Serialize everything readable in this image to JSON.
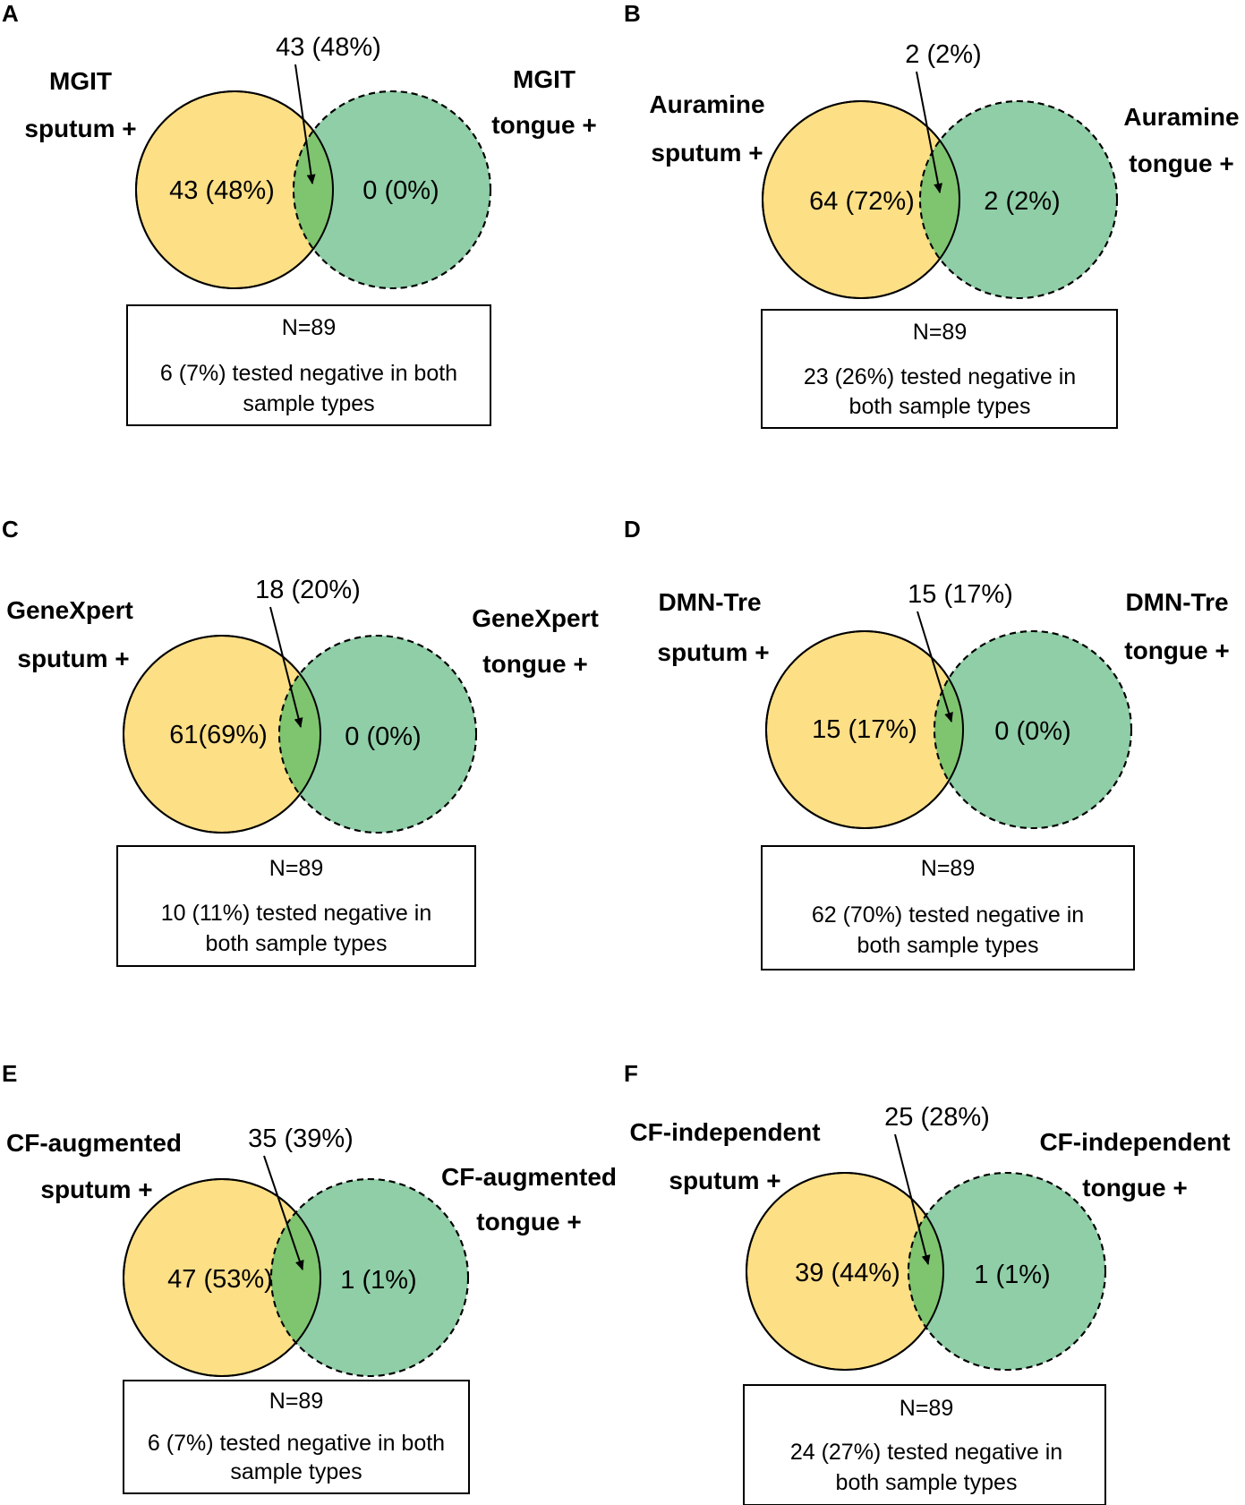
{
  "panels": [
    {
      "letter": "A",
      "sputum_label_1": "MGIT",
      "sputum_label_2": "sputum +",
      "tongue_label_1": "MGIT",
      "tongue_label_2": "tongue +",
      "sputum_only": "43 (48%)",
      "tongue_only": "0 (0%)",
      "overlap": "43 (48%)",
      "total": "N=89",
      "negative_line_1": "6 (7%) tested negative in both",
      "negative_line_2": "sample types"
    },
    {
      "letter": "B",
      "sputum_label_1": "Auramine",
      "sputum_label_2": "sputum +",
      "tongue_label_1": "Auramine",
      "tongue_label_2": "tongue +",
      "sputum_only": "64 (72%)",
      "tongue_only": "2 (2%)",
      "overlap": "2 (2%)",
      "total": "N=89",
      "negative_line_1": "23 (26%) tested negative in",
      "negative_line_2": "both sample types"
    },
    {
      "letter": "C",
      "sputum_label_1": "GeneXpert",
      "sputum_label_2": "sputum +",
      "tongue_label_1": "GeneXpert",
      "tongue_label_2": "tongue +",
      "sputum_only": "61(69%)",
      "tongue_only": "0 (0%)",
      "overlap": "18 (20%)",
      "total": "N=89",
      "negative_line_1": "10 (11%) tested negative in",
      "negative_line_2": "both sample types"
    },
    {
      "letter": "D",
      "sputum_label_1": "DMN-Tre",
      "sputum_label_2": "sputum +",
      "tongue_label_1": "DMN-Tre",
      "tongue_label_2": "tongue +",
      "sputum_only": "15 (17%)",
      "tongue_only": "0 (0%)",
      "overlap": "15 (17%)",
      "total": "N=89",
      "negative_line_1": "62 (70%) tested negative in",
      "negative_line_2": "both sample types"
    },
    {
      "letter": "E",
      "sputum_label_1": "CF-augmented",
      "sputum_label_2": "sputum +",
      "tongue_label_1": "CF-augmented",
      "tongue_label_2": "tongue +",
      "sputum_only": "47 (53%)",
      "tongue_only": "1 (1%)",
      "overlap": "35 (39%)",
      "total": "N=89",
      "negative_line_1": "6 (7%) tested negative in both",
      "negative_line_2": "sample types"
    },
    {
      "letter": "F",
      "sputum_label_1": "CF-independent",
      "sputum_label_2": "sputum +",
      "tongue_label_1": "CF-independent",
      "tongue_label_2": "tongue +",
      "sputum_only": "39 (44%)",
      "tongue_only": "1 (1%)",
      "overlap": "25 (28%)",
      "total": "N=89",
      "negative_line_1": "24 (27%) tested negative in",
      "negative_line_2": "both sample types"
    }
  ],
  "colors": {
    "sputum_fill": "#fddf86",
    "tongue_fill": "#8fcea7",
    "overlap_fill": "#7fc46f"
  }
}
